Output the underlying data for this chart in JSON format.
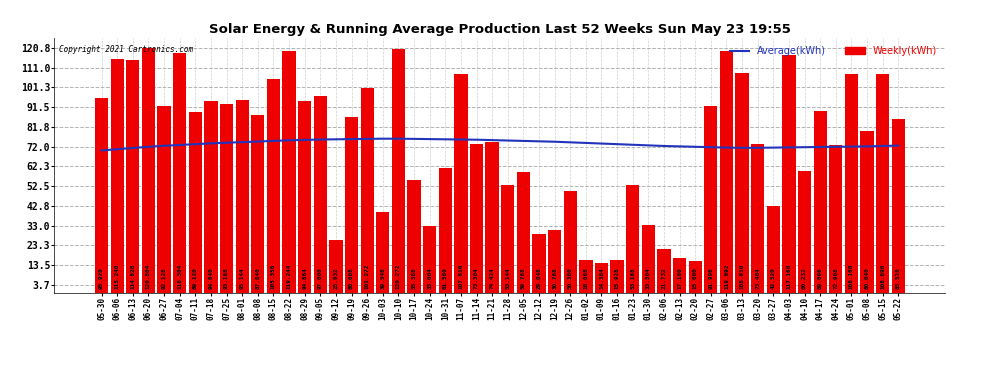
{
  "title": "Solar Energy & Running Average Production Last 52 Weeks Sun May 23 19:55",
  "copyright": "Copyright 2021 Cartronics.com",
  "legend_avg": "Average(kWh)",
  "legend_weekly": "Weekly(kWh)",
  "bar_color": "#EE0000",
  "avg_line_color": "#2233BB",
  "background_color": "#FFFFFF",
  "yticks": [
    3.7,
    13.5,
    23.3,
    33.0,
    42.8,
    52.5,
    62.3,
    72.0,
    81.8,
    91.5,
    101.3,
    111.0,
    120.8
  ],
  "ylim": [
    0,
    126
  ],
  "categories": [
    "05-30",
    "06-06",
    "06-13",
    "06-20",
    "06-27",
    "07-04",
    "07-11",
    "07-18",
    "07-25",
    "08-01",
    "08-08",
    "08-15",
    "08-22",
    "08-29",
    "09-05",
    "09-12",
    "09-19",
    "09-26",
    "10-03",
    "10-10",
    "10-17",
    "10-24",
    "10-31",
    "11-07",
    "11-14",
    "11-21",
    "11-28",
    "12-05",
    "12-12",
    "12-19",
    "12-26",
    "01-02",
    "01-09",
    "01-16",
    "01-23",
    "01-30",
    "02-06",
    "02-13",
    "02-20",
    "02-27",
    "03-06",
    "03-13",
    "03-20",
    "03-27",
    "04-03",
    "04-10",
    "04-17",
    "04-24",
    "05-01",
    "05-08",
    "05-15",
    "05-22"
  ],
  "weekly_values": [
    95.92,
    115.24,
    114.828,
    120.804,
    92.128,
    118.304,
    89.12,
    94.64,
    93.168,
    95.144,
    87.84,
    105.356,
    119.244,
    94.864,
    97.0,
    25.932,
    86.608,
    101.272,
    39.548,
    120.272,
    55.388,
    33.004,
    61.56,
    107.816,
    73.304,
    74.424,
    53.144,
    59.768,
    29.048,
    30.768,
    50.38,
    16.068,
    14.384,
    15.928,
    53.168,
    33.504,
    21.732,
    17.18,
    15.6,
    91.996,
    119.092,
    108.616,
    73.464,
    42.52,
    117.168,
    60.232,
    89.896,
    72.908,
    108.108,
    80.04,
    108.096,
    85.52
  ],
  "avg_values": [
    70.2,
    70.8,
    71.4,
    72.0,
    72.5,
    72.9,
    73.3,
    73.7,
    74.0,
    74.3,
    74.6,
    74.9,
    75.2,
    75.4,
    75.6,
    75.7,
    75.8,
    75.9,
    76.0,
    76.0,
    75.9,
    75.8,
    75.7,
    75.6,
    75.5,
    75.3,
    75.1,
    74.9,
    74.7,
    74.5,
    74.2,
    73.9,
    73.6,
    73.3,
    73.0,
    72.7,
    72.4,
    72.2,
    72.0,
    71.8,
    71.6,
    71.5,
    71.5,
    71.6,
    71.7,
    71.8,
    71.9,
    72.0,
    72.1,
    72.2,
    72.4,
    72.6
  ]
}
